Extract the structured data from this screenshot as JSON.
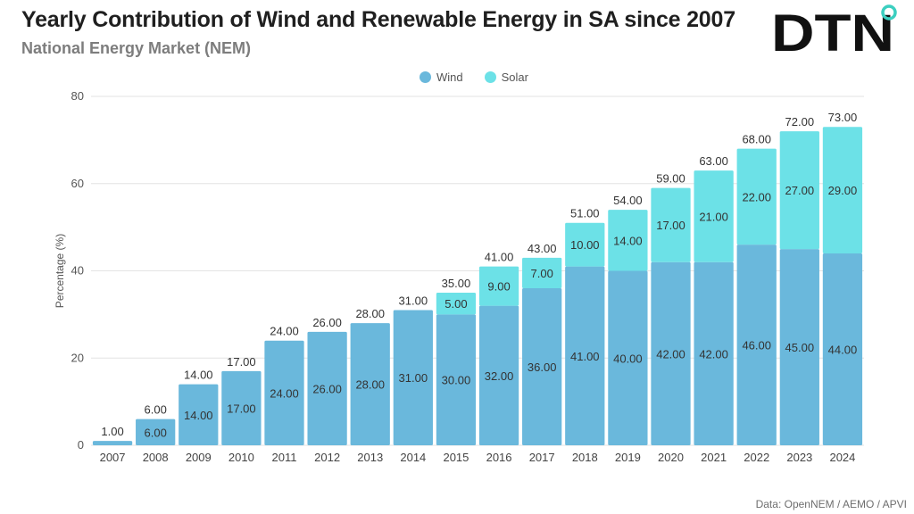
{
  "header": {
    "title": "Yearly Contribution of Wind and Renewable Energy in SA since 2007",
    "subtitle": "National Energy Market (NEM)",
    "logo_text": "DTN"
  },
  "colors": {
    "wind": "#6ab8dc",
    "solar": "#6ce1e7",
    "logo_dot": "#3ccfc0",
    "text": "#333333"
  },
  "source": "Data: OpenNEM / AEMO /  APVI",
  "chart_data": {
    "type": "bar",
    "stacked": true,
    "categories": [
      "2007",
      "2008",
      "2009",
      "2010",
      "2011",
      "2012",
      "2013",
      "2014",
      "2015",
      "2016",
      "2017",
      "2018",
      "2019",
      "2020",
      "2021",
      "2022",
      "2023",
      "2024"
    ],
    "series": [
      {
        "name": "Wind",
        "values": [
          1,
          6,
          14,
          17,
          24,
          26,
          28,
          31,
          30,
          32,
          36,
          41,
          40,
          42,
          42,
          46,
          45,
          44
        ]
      },
      {
        "name": "Solar",
        "values": [
          0,
          0,
          0,
          0,
          0,
          0,
          0,
          0,
          5,
          9,
          7,
          10,
          14,
          17,
          21,
          22,
          27,
          29
        ]
      }
    ],
    "totals": [
      1,
      6,
      14,
      17,
      24,
      26,
      28,
      31,
      35,
      41,
      43,
      51,
      54,
      59,
      63,
      68,
      72,
      73
    ],
    "ylabel": "Percentage (%)",
    "xlabel": "",
    "ylim": [
      0,
      80
    ],
    "yticks": [
      0,
      20,
      40,
      60,
      80
    ],
    "grid": true,
    "legend": "top-center"
  }
}
